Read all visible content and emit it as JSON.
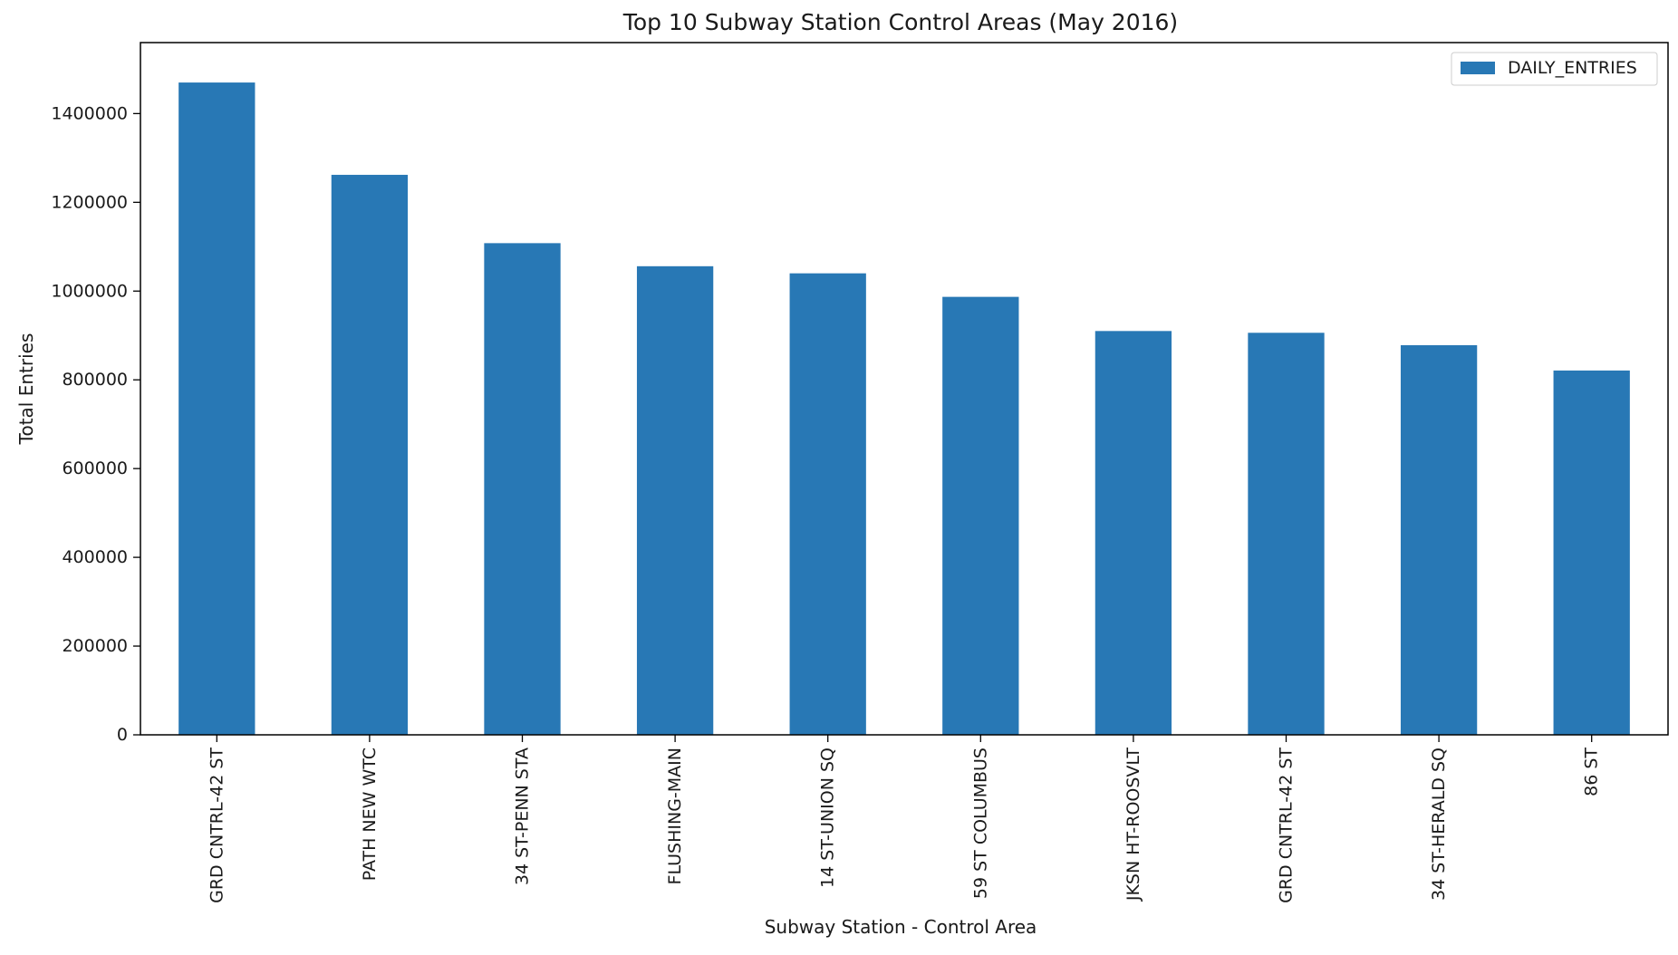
{
  "chart_data": {
    "type": "bar",
    "title": "Top 10 Subway Station Control Areas (May 2016)",
    "xlabel": "Subway Station - Control Area",
    "ylabel": "Total Entries",
    "categories": [
      "GRD CNTRL-42 ST",
      "PATH NEW WTC",
      "34 ST-PENN STA",
      "FLUSHING-MAIN",
      "14 ST-UNION SQ",
      "59 ST COLUMBUS",
      "JKSN HT-ROOSVLT",
      "GRD CNTRL-42 ST",
      "34 ST-HERALD SQ",
      "86 ST"
    ],
    "series": [
      {
        "name": "DAILY_ENTRIES",
        "color": "#2878b5",
        "values": [
          1470000,
          1262000,
          1108000,
          1056000,
          1040000,
          987000,
          910000,
          906000,
          878000,
          821000
        ]
      }
    ],
    "ylim": [
      0,
      1560000
    ],
    "yticks": [
      0,
      200000,
      400000,
      600000,
      800000,
      1000000,
      1200000,
      1400000
    ],
    "ytick_labels": [
      "0",
      "200000",
      "400000",
      "600000",
      "800000",
      "1000000",
      "1200000",
      "1400000"
    ],
    "grid": false,
    "legend_position": "top-right"
  }
}
